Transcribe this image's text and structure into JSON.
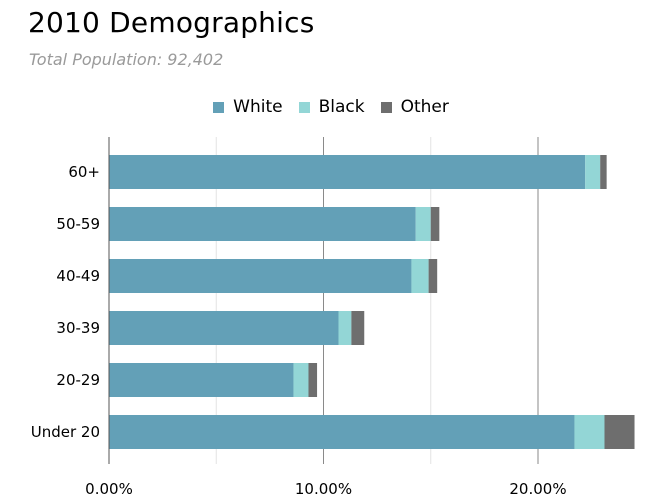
{
  "chart_data": {
    "type": "bar",
    "orientation": "horizontal",
    "stacked": true,
    "title": "2010 Demographics",
    "subtitle": "Total Population: 92,402",
    "categories": [
      "60+",
      "50-59",
      "40-49",
      "30-39",
      "20-29",
      "Under 20"
    ],
    "series": [
      {
        "name": "White",
        "color": "#63a0b7",
        "values": [
          22.2,
          14.3,
          14.1,
          10.7,
          8.6,
          21.7
        ]
      },
      {
        "name": "Black",
        "color": "#93d6d6",
        "values": [
          0.7,
          0.7,
          0.8,
          0.6,
          0.7,
          1.4
        ]
      },
      {
        "name": "Other",
        "color": "#6e6e6e",
        "values": [
          0.3,
          0.4,
          0.4,
          0.6,
          0.4,
          1.4
        ]
      }
    ],
    "xlim": [
      0,
      24.5
    ],
    "xticks": [
      0,
      10,
      20
    ],
    "xtick_labels": [
      "0.00%",
      "10.00%",
      "20.00%"
    ],
    "grid": true,
    "legend_position": "top-center"
  }
}
